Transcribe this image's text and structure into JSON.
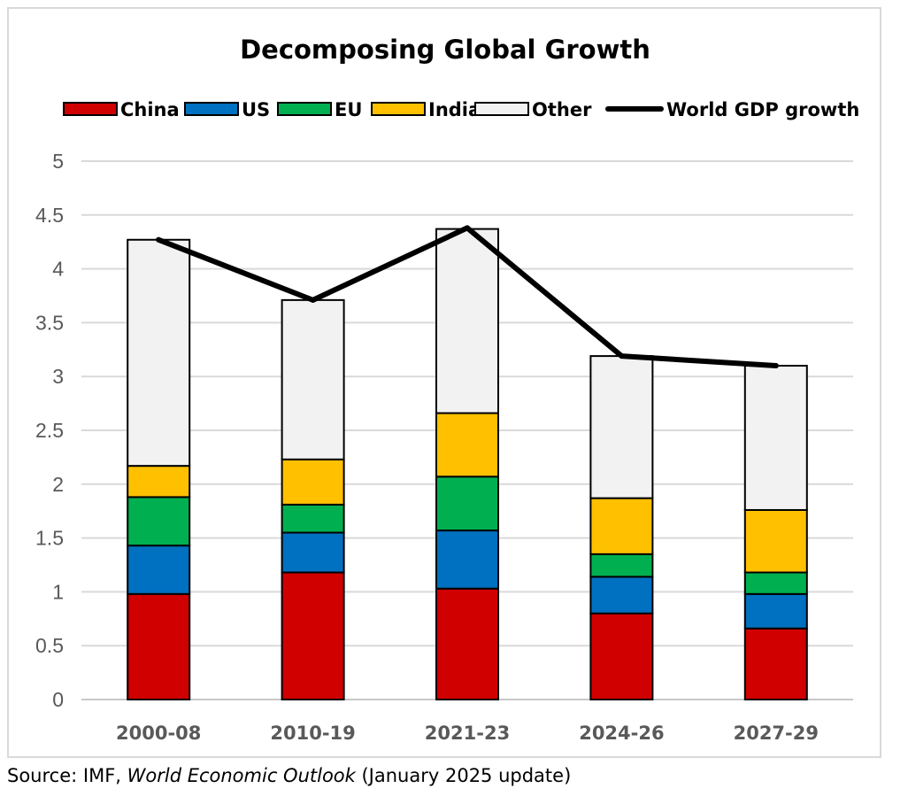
{
  "chart_data": {
    "type": "bar",
    "stacked": true,
    "title": "Decomposing Global Growth",
    "xlabel": "",
    "ylabel": "",
    "categories": [
      "2000-08",
      "2010-19",
      "2021-23",
      "2024-26",
      "2027-29"
    ],
    "ylim": [
      0,
      5
    ],
    "yticks": [
      "0",
      "0.5",
      "1",
      "1.5",
      "2",
      "2.5",
      "3",
      "3.5",
      "4",
      "4.5",
      "5"
    ],
    "ytick_values": [
      0,
      0.5,
      1,
      1.5,
      2,
      2.5,
      3,
      3.5,
      4,
      4.5,
      5
    ],
    "grid": true,
    "legend_position": "top",
    "series": [
      {
        "name": "China",
        "color": "#d00000",
        "values": [
          0.98,
          1.18,
          1.03,
          0.8,
          0.66
        ]
      },
      {
        "name": "US",
        "color": "#0070c0",
        "values": [
          0.45,
          0.37,
          0.54,
          0.34,
          0.32
        ]
      },
      {
        "name": "EU",
        "color": "#00b050",
        "values": [
          0.45,
          0.26,
          0.5,
          0.21,
          0.2
        ]
      },
      {
        "name": "India",
        "color": "#ffc000",
        "values": [
          0.29,
          0.42,
          0.59,
          0.52,
          0.58
        ]
      },
      {
        "name": "Other",
        "color": "#f2f2f2",
        "values": [
          2.1,
          1.48,
          1.71,
          1.32,
          1.34
        ]
      }
    ],
    "line": {
      "name": "World GDP growth",
      "color": "#000000",
      "values": [
        4.27,
        3.71,
        4.38,
        3.19,
        3.1
      ]
    }
  },
  "source": {
    "prefix": "Source: IMF, ",
    "publication": "World Economic Outlook",
    "suffix": " (January 2025 update)"
  }
}
